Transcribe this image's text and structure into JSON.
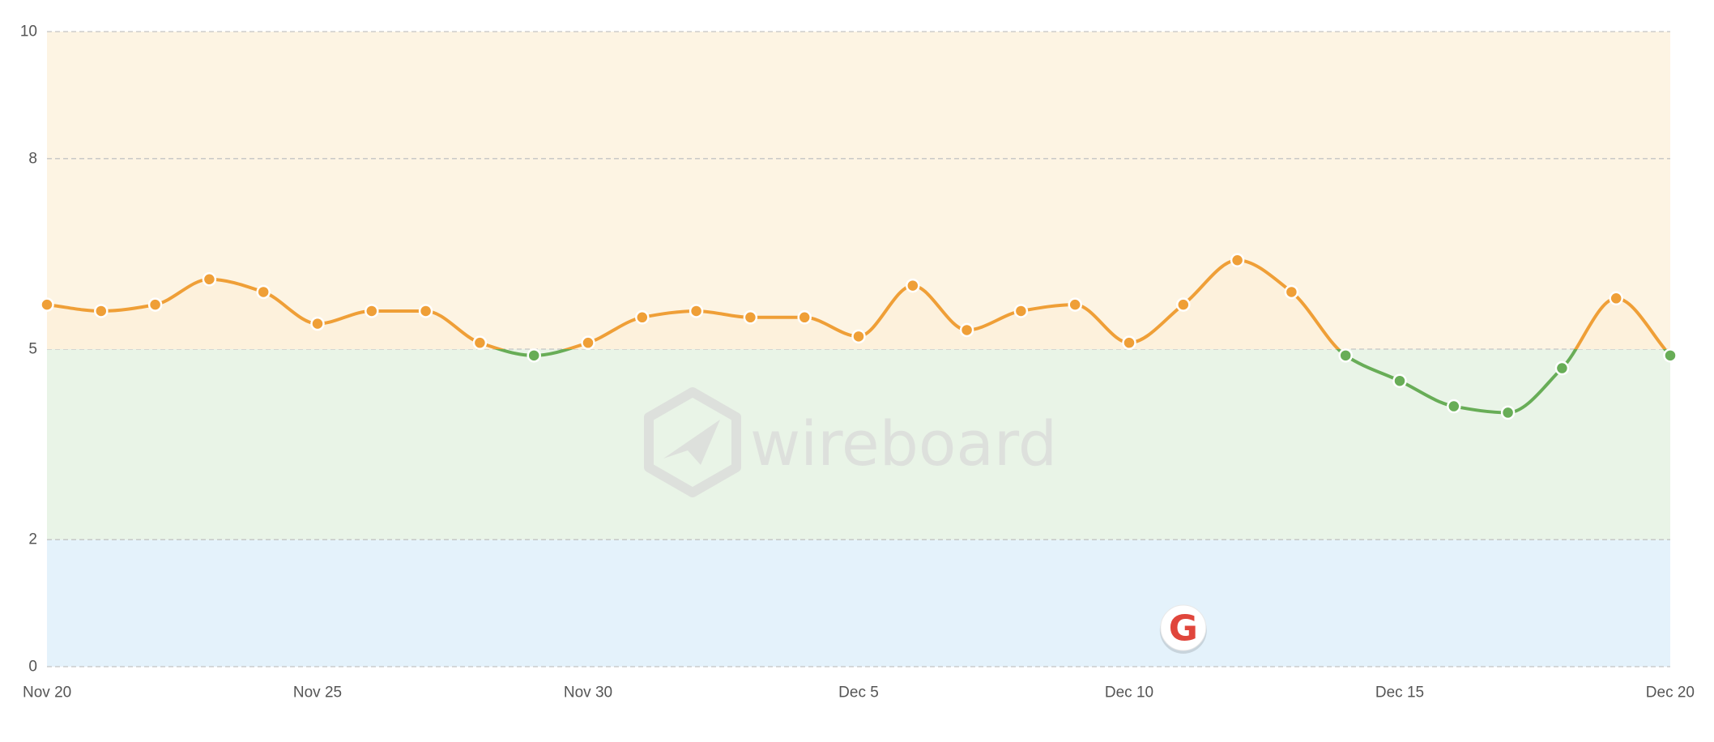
{
  "chart_data": {
    "type": "line",
    "x": [
      "Nov 20",
      "Nov 21",
      "Nov 22",
      "Nov 23",
      "Nov 24",
      "Nov 25",
      "Nov 26",
      "Nov 27",
      "Nov 28",
      "Nov 29",
      "Nov 30",
      "Dec 1",
      "Dec 2",
      "Dec 3",
      "Dec 4",
      "Dec 5",
      "Dec 6",
      "Dec 7",
      "Dec 8",
      "Dec 9",
      "Dec 10",
      "Dec 11",
      "Dec 12",
      "Dec 13",
      "Dec 14",
      "Dec 15",
      "Dec 16",
      "Dec 17",
      "Dec 18",
      "Dec 19",
      "Dec 20"
    ],
    "series": [
      {
        "values": [
          5.7,
          5.6,
          5.7,
          6.1,
          5.9,
          5.4,
          5.6,
          5.6,
          5.1,
          4.9,
          5.1,
          5.5,
          5.6,
          5.5,
          5.5,
          5.2,
          6.0,
          5.3,
          5.6,
          5.7,
          5.1,
          5.7,
          6.4,
          5.9,
          4.9,
          4.5,
          4.1,
          4.0,
          4.7,
          5.8,
          4.9
        ]
      }
    ],
    "xticks": [
      "Nov 20",
      "Nov 25",
      "Nov 30",
      "Dec 5",
      "Dec 10",
      "Dec 15",
      "Dec 20"
    ],
    "xtick_index": [
      0,
      5,
      10,
      15,
      20,
      25,
      30
    ],
    "yticks": [
      "0",
      "2",
      "5",
      "8",
      "10"
    ],
    "ytick_values": [
      0,
      2,
      5,
      8,
      10
    ],
    "ylim": [
      0,
      10
    ],
    "bands": [
      {
        "from": 0,
        "to": 2,
        "color": "#e4f2fb"
      },
      {
        "from": 2,
        "to": 5,
        "color": "#e9f4e7"
      },
      {
        "from": 5,
        "to": 10,
        "color": "#fdf4e3"
      }
    ],
    "line_colors": {
      "above_threshold": "#ef9f37",
      "below_threshold": "#68ad57"
    },
    "threshold": 5,
    "grid": true,
    "title": "",
    "xlabel": "",
    "ylabel": ""
  },
  "watermark": {
    "text": "wireboard",
    "icon": "wireboard-logo-icon"
  },
  "google_marker": {
    "letter": "G",
    "date": "Dec 11",
    "icon": "google-g-icon",
    "color": "#e0463c"
  }
}
